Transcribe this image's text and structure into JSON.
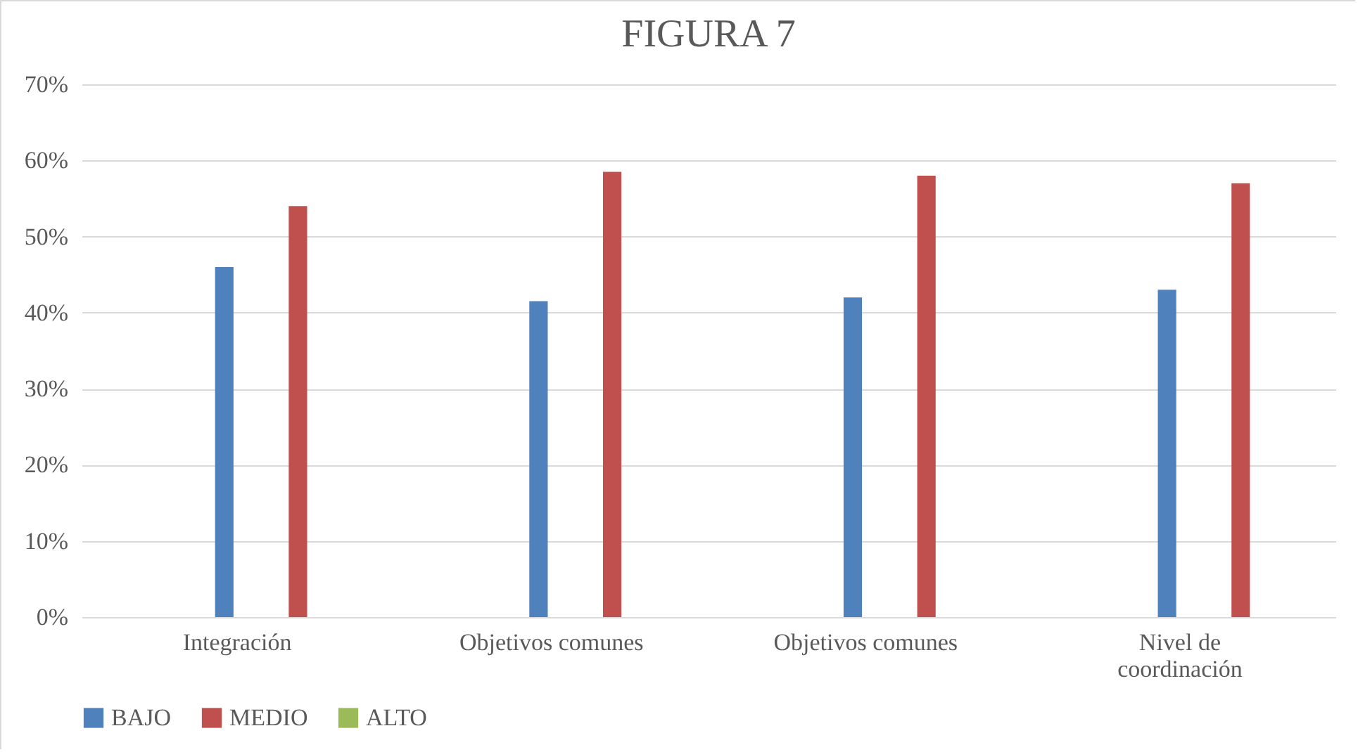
{
  "chart_data": {
    "type": "bar",
    "title": "FIGURA 7",
    "categories": [
      "Integración",
      "Objetivos comunes",
      "Objetivos comunes",
      "Nivel de coordinación"
    ],
    "series": [
      {
        "name": "BAJO",
        "color": "#4f81bd",
        "values": [
          0.46,
          0.415,
          0.42,
          0.43
        ]
      },
      {
        "name": "MEDIO",
        "color": "#c0504d",
        "values": [
          0.54,
          0.585,
          0.58,
          0.57
        ]
      },
      {
        "name": "ALTO",
        "color": "#9bbb59",
        "values": [
          0,
          0,
          0,
          0
        ]
      }
    ],
    "ylim": [
      0,
      0.7
    ],
    "yticks": [
      {
        "value": 0,
        "label": "0%"
      },
      {
        "value": 0.1,
        "label": "10%"
      },
      {
        "value": 0.2,
        "label": "20%"
      },
      {
        "value": 0.3,
        "label": "30%"
      },
      {
        "value": 0.4,
        "label": "40%"
      },
      {
        "value": 0.5,
        "label": "50%"
      },
      {
        "value": 0.6,
        "label": "60%"
      },
      {
        "value": 0.7,
        "label": "70%"
      }
    ],
    "grid": "y",
    "legend": "bottom"
  }
}
